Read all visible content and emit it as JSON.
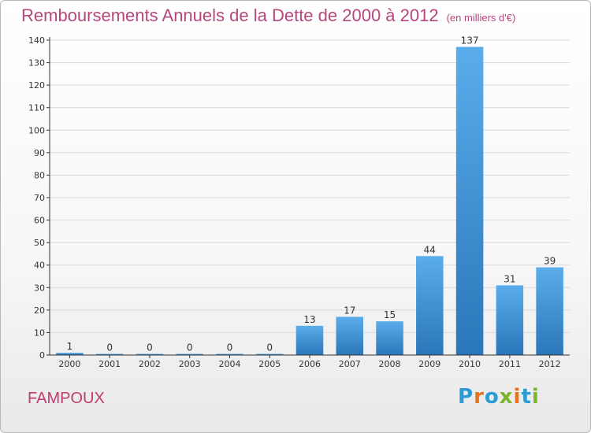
{
  "chart_data": {
    "type": "bar",
    "title": "Remboursements Annuels de la Dette de 2000 à 2012",
    "subtitle": "(en milliers d'€)",
    "categories": [
      "2000",
      "2001",
      "2002",
      "2003",
      "2004",
      "2005",
      "2006",
      "2007",
      "2008",
      "2009",
      "2010",
      "2011",
      "2012"
    ],
    "values": [
      1,
      0,
      0,
      0,
      0,
      0,
      13,
      17,
      15,
      44,
      137,
      31,
      39
    ],
    "ylim": [
      0,
      140
    ],
    "yticks": [
      0,
      10,
      20,
      30,
      40,
      50,
      60,
      70,
      80,
      90,
      100,
      110,
      120,
      130,
      140
    ],
    "grid": true,
    "bar_color": "#3a8fd6",
    "bar_color_light": "#5aadea",
    "axis_color": "#333333",
    "grid_color": "#d8d8d8"
  },
  "commune": "FAMPOUX",
  "logo": {
    "letters": [
      "P",
      "r",
      "o",
      "x",
      "i",
      "t",
      "i"
    ],
    "colors": [
      "#2a9bd6",
      "#e8731b",
      "#2a9bd6",
      "#7ab52b",
      "#e8731b",
      "#2a9bd6",
      "#7ab52b"
    ]
  }
}
